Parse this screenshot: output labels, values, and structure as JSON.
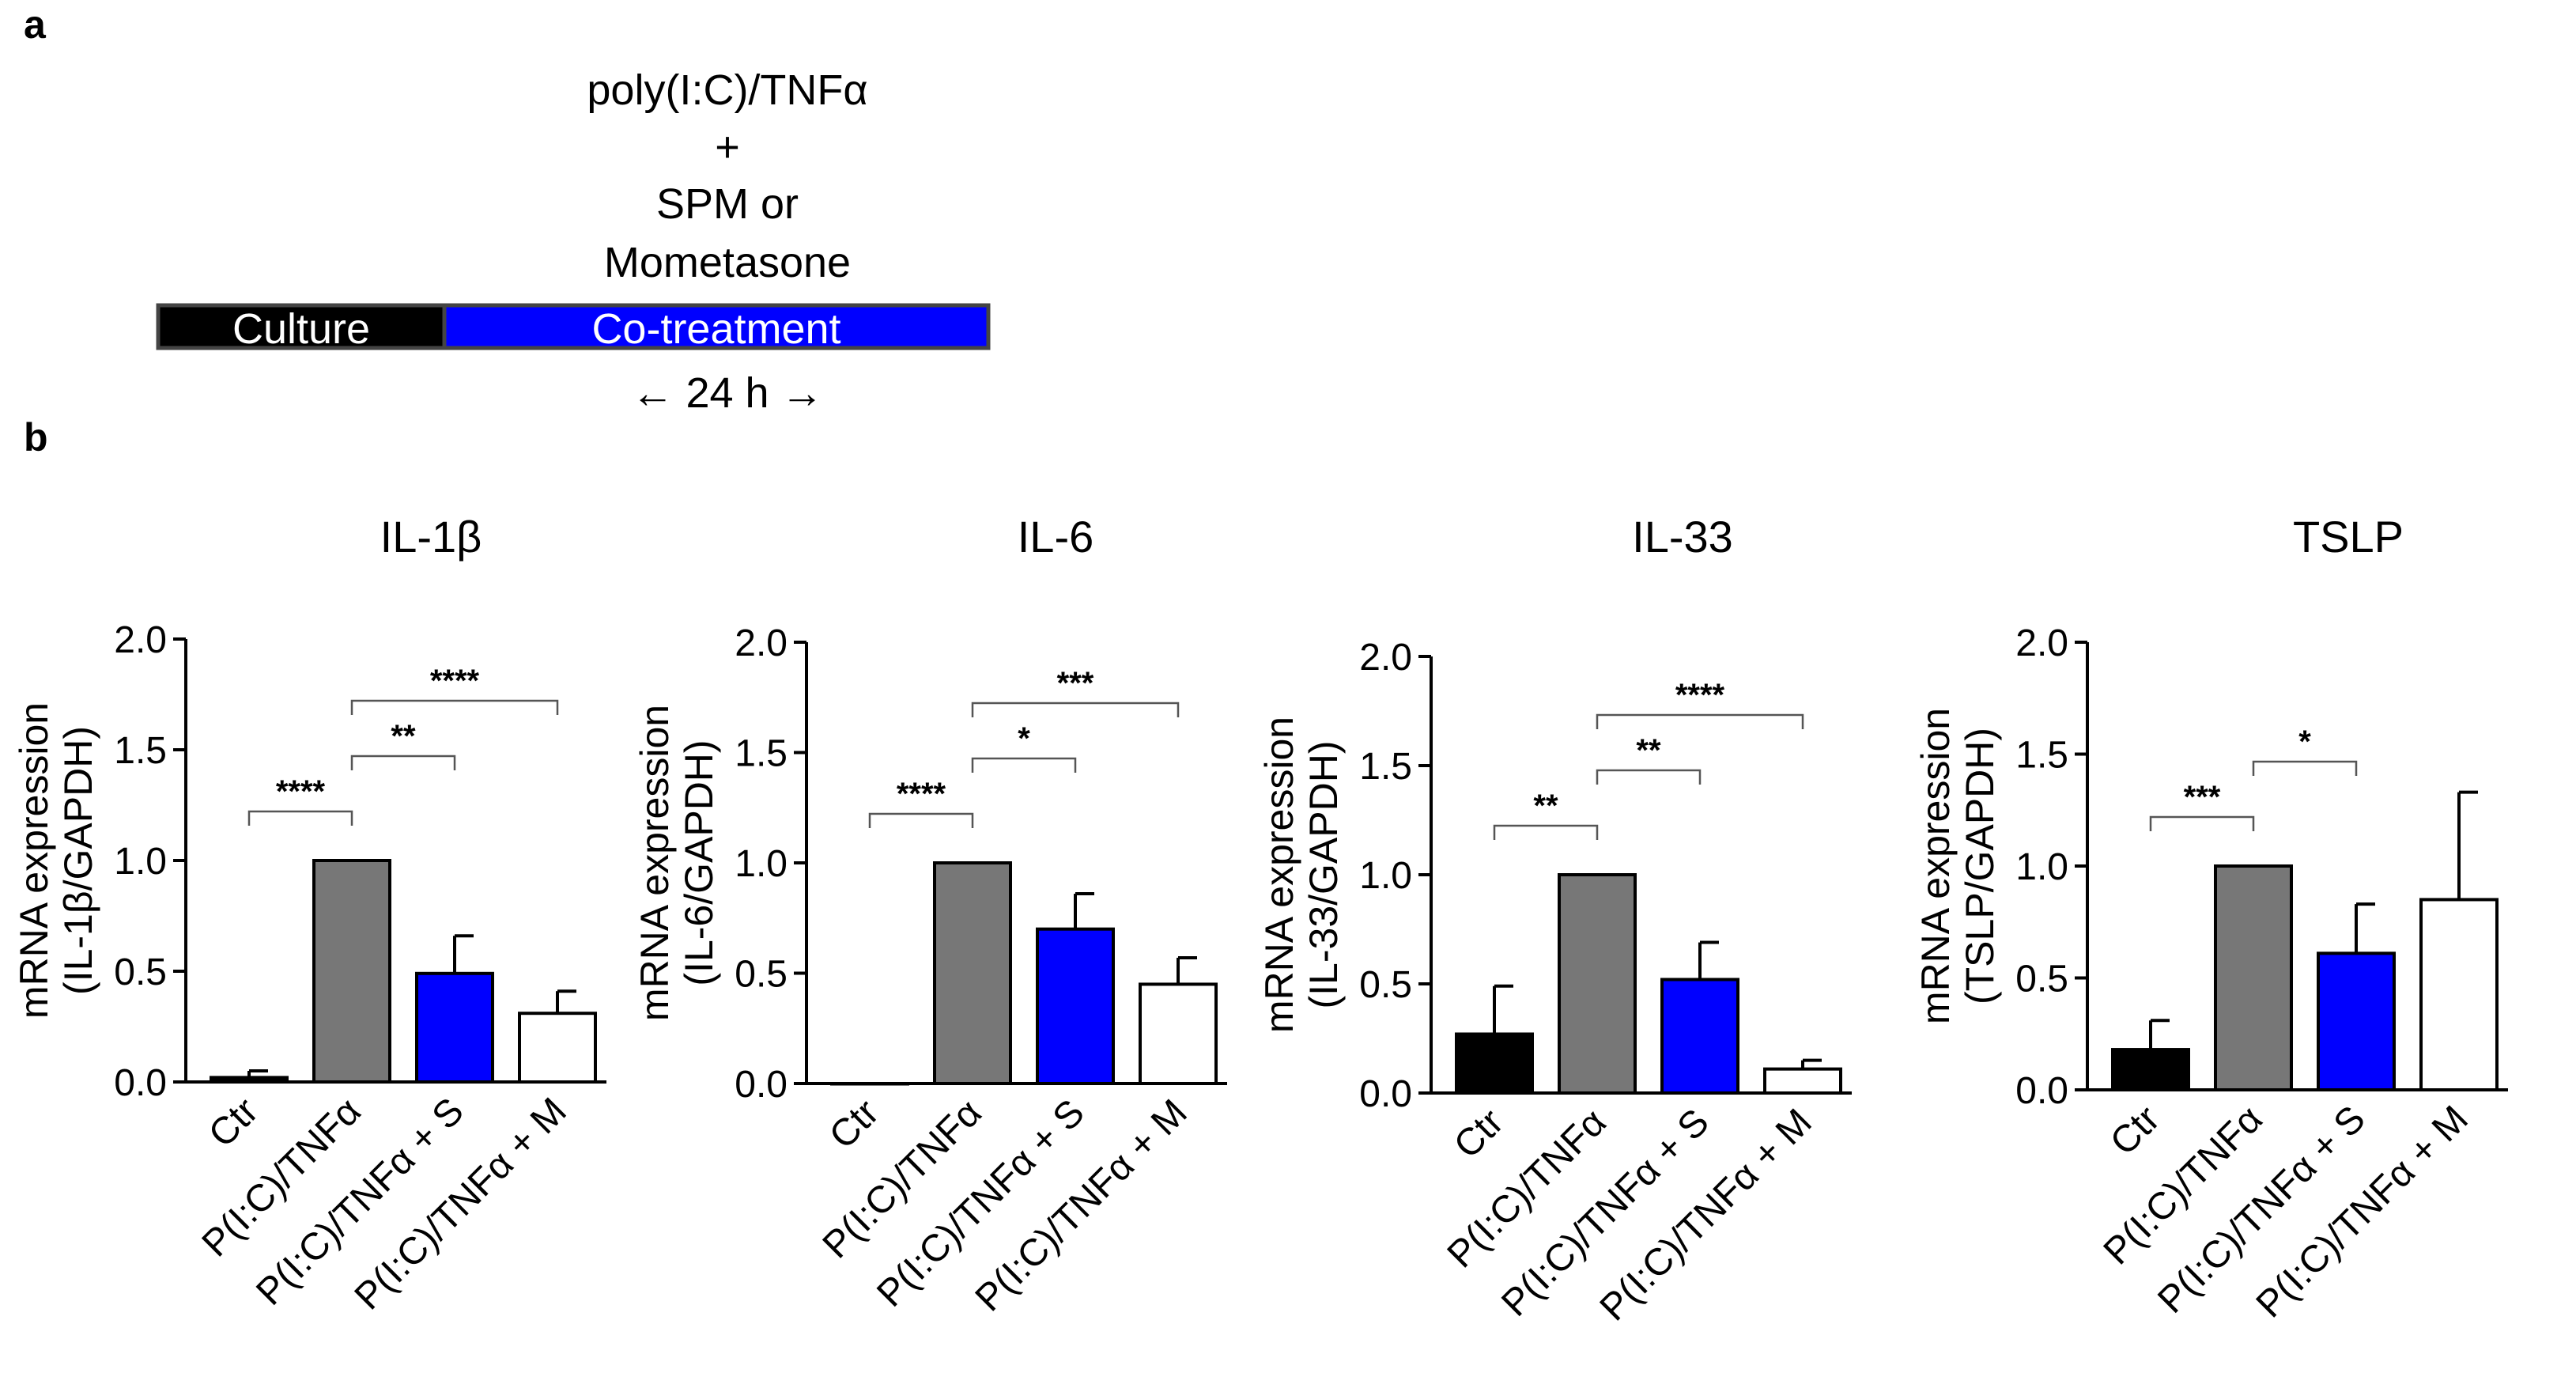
{
  "panel_a": {
    "label": "a",
    "treatment_lines": [
      "poly(I:C)/TNFα",
      "+",
      "SPM or",
      "Mometasone"
    ],
    "culture_label": "Culture",
    "cotreatment_label": "Co-treatment",
    "duration_label": "← 24 h →",
    "colors": {
      "culture": "#000000",
      "cotreatment": "#0000ff",
      "border": "#444444"
    }
  },
  "panel_b": {
    "label": "b"
  },
  "colors": {
    "ctr": "#000000",
    "pic": "#777777",
    "spm": "#0000ff",
    "mom": "#ffffff"
  },
  "chart_data": [
    {
      "type": "bar",
      "title": "IL-1β",
      "ylabel_lines": [
        "mRNA expression",
        "(IL-1β/GAPDH)"
      ],
      "categories": [
        "Ctr",
        "P(I:C)/TNFα",
        "P(I:C)/TNFα + S",
        "P(I:C)/TNFα + M"
      ],
      "values": [
        0.02,
        1.0,
        0.49,
        0.31
      ],
      "errors": [
        0.03,
        0.0,
        0.17,
        0.1
      ],
      "ylim": [
        0,
        2.0
      ],
      "yticks": [
        "0.0",
        "0.5",
        "1.0",
        "1.5",
        "2.0"
      ],
      "significance": [
        {
          "from": 0,
          "to": 1,
          "label": "****"
        },
        {
          "from": 1,
          "to": 2,
          "label": "**"
        },
        {
          "from": 1,
          "to": 3,
          "label": "****"
        }
      ]
    },
    {
      "type": "bar",
      "title": "IL-6",
      "ylabel_lines": [
        "mRNA expression",
        "(IL-6/GAPDH)"
      ],
      "categories": [
        "Ctr",
        "P(I:C)/TNFα",
        "P(I:C)/TNFα + S",
        "P(I:C)/TNFα +  M"
      ],
      "values": [
        0.0,
        1.0,
        0.7,
        0.45
      ],
      "errors": [
        0.0,
        0.0,
        0.16,
        0.12
      ],
      "ylim": [
        0,
        2.0
      ],
      "yticks": [
        "0.0",
        "0.5",
        "1.0",
        "1.5",
        "2.0"
      ],
      "significance": [
        {
          "from": 0,
          "to": 1,
          "label": "****"
        },
        {
          "from": 1,
          "to": 2,
          "label": "*"
        },
        {
          "from": 1,
          "to": 3,
          "label": "***"
        }
      ]
    },
    {
      "type": "bar",
      "title": "IL-33",
      "ylabel_lines": [
        "mRNA expression",
        "(IL-33/GAPDH)"
      ],
      "categories": [
        "Ctr",
        "P(I:C)/TNFα",
        "P(I:C)/TNFα + S",
        "P(I:C)/TNFα + M"
      ],
      "values": [
        0.27,
        1.0,
        0.52,
        0.11
      ],
      "errors": [
        0.22,
        0.0,
        0.17,
        0.04
      ],
      "ylim": [
        0,
        2.0
      ],
      "yticks": [
        "0.0",
        "0.5",
        "1.0",
        "1.5",
        "2.0"
      ],
      "significance": [
        {
          "from": 0,
          "to": 1,
          "label": "**"
        },
        {
          "from": 1,
          "to": 2,
          "label": "**"
        },
        {
          "from": 1,
          "to": 3,
          "label": "****"
        }
      ]
    },
    {
      "type": "bar",
      "title": "TSLP",
      "ylabel_lines": [
        "mRNA expression",
        "(TSLP/GAPDH)"
      ],
      "categories": [
        "Ctr",
        "P(I:C)/TNFα",
        "P(I:C)/TNFα + S",
        "P(I:C)/TNFα + M"
      ],
      "values": [
        0.18,
        1.0,
        0.61,
        0.85
      ],
      "errors": [
        0.13,
        0.0,
        0.22,
        0.48
      ],
      "ylim": [
        0,
        2.0
      ],
      "yticks": [
        "0.0",
        "0.5",
        "1.0",
        "1.5",
        "2.0"
      ],
      "significance": [
        {
          "from": 0,
          "to": 1,
          "label": "***"
        },
        {
          "from": 1,
          "to": 2,
          "label": "*"
        }
      ]
    }
  ]
}
